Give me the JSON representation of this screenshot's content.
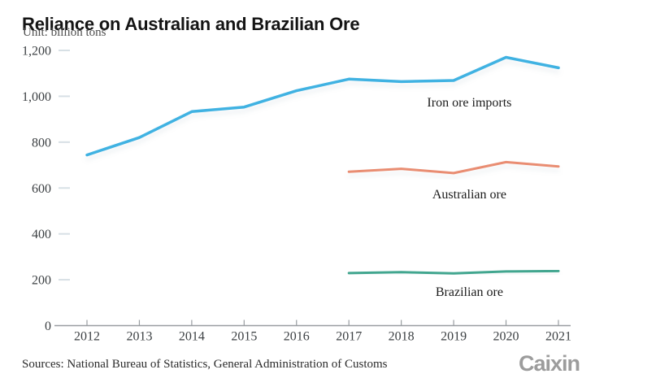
{
  "header": {
    "title": "Reliance on Australian and Brazilian Ore",
    "unit": "Unit: billion tons"
  },
  "chart_data": {
    "type": "line",
    "title": "Reliance on Australian and Brazilian Ore",
    "unit_label": "Unit: billion tons",
    "xlabel": "",
    "ylabel": "",
    "grid": false,
    "legend_position": "inline-annotations",
    "ylim": [
      0,
      1200
    ],
    "x_years": [
      2012,
      2013,
      2014,
      2015,
      2016,
      2017,
      2018,
      2019,
      2020,
      2021
    ],
    "x_tick_labels": [
      "2012",
      "2013",
      "2014",
      "2015",
      "2016",
      "2017",
      "2018",
      "2019",
      "2020",
      "2021"
    ],
    "y_ticks": [
      {
        "value": 0,
        "label": "0"
      },
      {
        "value": 200,
        "label": "200"
      },
      {
        "value": 400,
        "label": "400"
      },
      {
        "value": 600,
        "label": "600"
      },
      {
        "value": 800,
        "label": "800"
      },
      {
        "value": 1000,
        "label": "1,000"
      },
      {
        "value": 1200,
        "label": "1,200"
      }
    ],
    "series": [
      {
        "id": "iron-ore-imports",
        "name": "Iron ore imports",
        "color": "#3fb2e2",
        "start_year": 2012,
        "values": [
          744,
          820,
          933,
          953,
          1024,
          1075,
          1064,
          1069,
          1170,
          1124
        ]
      },
      {
        "id": "australian-ore",
        "name": "Australian ore",
        "color": "#e98d72",
        "start_year": 2017,
        "values": [
          671,
          684,
          665,
          713,
          694
        ]
      },
      {
        "id": "brazilian-ore",
        "name": "Brazilian ore",
        "color": "#43a68f",
        "start_year": 2017,
        "values": [
          229,
          233,
          228,
          236,
          238
        ]
      }
    ],
    "annotations": [
      {
        "text": "Iron ore imports",
        "year": 2019.3,
        "value": 973
      },
      {
        "text": "Australian ore",
        "year": 2019.3,
        "value": 573
      },
      {
        "text": "Brazilian ore",
        "year": 2019.3,
        "value": 148
      }
    ]
  },
  "footer": {
    "sources": "Sources: National Bureau of Statistics, General Administration of Customs",
    "logo": "Caixin"
  },
  "colors": {
    "iron_ore": "#3fb2e2",
    "australian_ore": "#e98d72",
    "brazilian_ore": "#43a68f",
    "axis": "#999da1",
    "y_dash": "#d7e0e5",
    "title_text": "#141414",
    "logo_gray": "#9c9c9c"
  }
}
